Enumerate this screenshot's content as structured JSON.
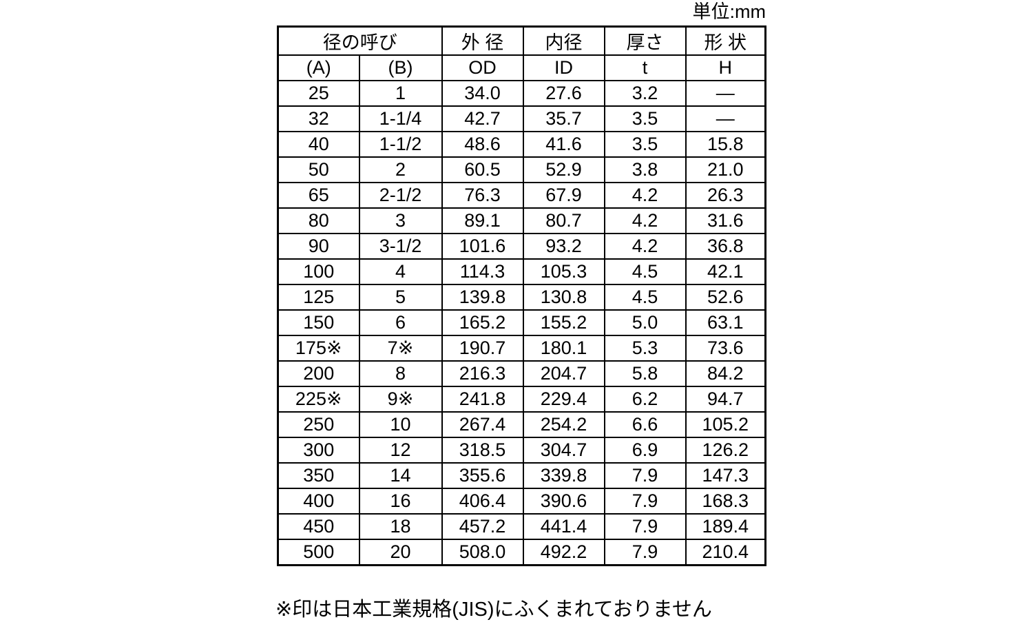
{
  "unit_label": "単位:mm",
  "footnote": "※印は日本工業規格(JIS)にふくまれておりません",
  "table": {
    "column_keys": [
      "a",
      "b",
      "od",
      "id",
      "t",
      "h"
    ],
    "header_row1": {
      "dia_label": "径の呼び",
      "od": "外 径",
      "id": "内径",
      "t": "厚さ",
      "h": "形 状"
    },
    "header_row2": {
      "a": "(A)",
      "b": "(B)",
      "od": "OD",
      "id": "ID",
      "t": "t",
      "h": "H"
    },
    "rows": [
      {
        "a": "25",
        "b": "1",
        "od": "34.0",
        "id": "27.6",
        "t": "3.2",
        "h": "—"
      },
      {
        "a": "32",
        "b": "1-1/4",
        "od": "42.7",
        "id": "35.7",
        "t": "3.5",
        "h": "—"
      },
      {
        "a": "40",
        "b": "1-1/2",
        "od": "48.6",
        "id": "41.6",
        "t": "3.5",
        "h": "15.8"
      },
      {
        "a": "50",
        "b": "2",
        "od": "60.5",
        "id": "52.9",
        "t": "3.8",
        "h": "21.0"
      },
      {
        "a": "65",
        "b": "2-1/2",
        "od": "76.3",
        "id": "67.9",
        "t": "4.2",
        "h": "26.3"
      },
      {
        "a": "80",
        "b": "3",
        "od": "89.1",
        "id": "80.7",
        "t": "4.2",
        "h": "31.6"
      },
      {
        "a": "90",
        "b": "3-1/2",
        "od": "101.6",
        "id": "93.2",
        "t": "4.2",
        "h": "36.8"
      },
      {
        "a": "100",
        "b": "4",
        "od": "114.3",
        "id": "105.3",
        "t": "4.5",
        "h": "42.1"
      },
      {
        "a": "125",
        "b": "5",
        "od": "139.8",
        "id": "130.8",
        "t": "4.5",
        "h": "52.6"
      },
      {
        "a": "150",
        "b": "6",
        "od": "165.2",
        "id": "155.2",
        "t": "5.0",
        "h": "63.1"
      },
      {
        "a": "175※",
        "b": "7※",
        "od": "190.7",
        "id": "180.1",
        "t": "5.3",
        "h": "73.6"
      },
      {
        "a": "200",
        "b": "8",
        "od": "216.3",
        "id": "204.7",
        "t": "5.8",
        "h": "84.2"
      },
      {
        "a": "225※",
        "b": "9※",
        "od": "241.8",
        "id": "229.4",
        "t": "6.2",
        "h": "94.7"
      },
      {
        "a": "250",
        "b": "10",
        "od": "267.4",
        "id": "254.2",
        "t": "6.6",
        "h": "105.2"
      },
      {
        "a": "300",
        "b": "12",
        "od": "318.5",
        "id": "304.7",
        "t": "6.9",
        "h": "126.2"
      },
      {
        "a": "350",
        "b": "14",
        "od": "355.6",
        "id": "339.8",
        "t": "7.9",
        "h": "147.3"
      },
      {
        "a": "400",
        "b": "16",
        "od": "406.4",
        "id": "390.6",
        "t": "7.9",
        "h": "168.3"
      },
      {
        "a": "450",
        "b": "18",
        "od": "457.2",
        "id": "441.4",
        "t": "7.9",
        "h": "189.4"
      },
      {
        "a": "500",
        "b": "20",
        "od": "508.0",
        "id": "492.2",
        "t": "7.9",
        "h": "210.4"
      }
    ]
  }
}
